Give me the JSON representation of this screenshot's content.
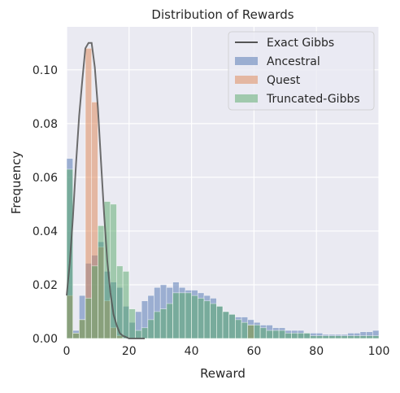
{
  "chart_data": {
    "type": "bar",
    "title": "Distribution of Rewards",
    "xlabel": "Reward",
    "ylabel": "Frequency",
    "xlim": [
      0,
      100
    ],
    "ylim": [
      0,
      0.116
    ],
    "xticks": [
      "0",
      "20",
      "40",
      "60",
      "80",
      "100"
    ],
    "yticks": [
      "0.00",
      "0.02",
      "0.04",
      "0.06",
      "0.08",
      "0.10"
    ],
    "grid": true,
    "legend_position": "top-right",
    "bin_width": 2,
    "bin_starts": [
      0,
      2,
      4,
      6,
      8,
      10,
      12,
      14,
      16,
      18,
      20,
      22,
      24,
      26,
      28,
      30,
      32,
      34,
      36,
      38,
      40,
      42,
      44,
      46,
      48,
      50,
      52,
      54,
      56,
      58,
      60,
      62,
      64,
      66,
      68,
      70,
      72,
      74,
      76,
      78,
      80,
      82,
      84,
      86,
      88,
      90,
      92,
      94,
      96,
      98
    ],
    "series": [
      {
        "name": "Ancestral",
        "color": "#4c72b0",
        "values": [
          0.067,
          0.003,
          0.016,
          0.028,
          0.031,
          0.036,
          0.025,
          0.021,
          0.019,
          0.012,
          0.006,
          0.01,
          0.014,
          0.016,
          0.019,
          0.02,
          0.019,
          0.021,
          0.019,
          0.018,
          0.018,
          0.017,
          0.016,
          0.015,
          0.012,
          0.01,
          0.009,
          0.008,
          0.008,
          0.007,
          0.006,
          0.005,
          0.005,
          0.004,
          0.004,
          0.003,
          0.003,
          0.003,
          0.002,
          0.002,
          0.002,
          0.0015,
          0.0015,
          0.0015,
          0.0015,
          0.002,
          0.002,
          0.0025,
          0.0025,
          0.003
        ]
      },
      {
        "name": "Quest",
        "color": "#dd8452",
        "values": [
          0.016,
          0.002,
          0.007,
          0.108,
          0.088,
          0.034,
          0.014,
          0.004,
          0.001,
          0.0,
          0.0,
          0.0,
          0.0,
          0.0,
          0.0,
          0.0,
          0.0,
          0.0,
          0.0,
          0.0,
          0.0,
          0.0,
          0.0,
          0.0,
          0.0,
          0.0,
          0.0,
          0.0,
          0.0,
          0.005,
          0.0,
          0.0,
          0.0,
          0.0,
          0.0,
          0.0,
          0.0,
          0.0,
          0.0,
          0.0,
          0.0,
          0.0,
          0.0,
          0.0,
          0.0,
          0.0,
          0.0,
          0.0,
          0.0,
          0.0
        ]
      },
      {
        "name": "Truncated-Gibbs",
        "color": "#55a868",
        "values": [
          0.063,
          0.002,
          0.007,
          0.015,
          0.027,
          0.042,
          0.051,
          0.05,
          0.027,
          0.025,
          0.011,
          0.003,
          0.004,
          0.007,
          0.01,
          0.011,
          0.013,
          0.017,
          0.017,
          0.017,
          0.016,
          0.015,
          0.014,
          0.013,
          0.012,
          0.01,
          0.009,
          0.007,
          0.006,
          0.005,
          0.005,
          0.004,
          0.003,
          0.003,
          0.003,
          0.002,
          0.002,
          0.002,
          0.002,
          0.001,
          0.001,
          0.001,
          0.001,
          0.001,
          0.001,
          0.001,
          0.001,
          0.001,
          0.001,
          0.001
        ]
      },
      {
        "name": "Exact Gibbs",
        "color": "#555555",
        "type": "line",
        "x": [
          0,
          1,
          2,
          3,
          4,
          5,
          6,
          7,
          8,
          9,
          10,
          11,
          12,
          13,
          14,
          15,
          16,
          17,
          18,
          19,
          20,
          21,
          22,
          25
        ],
        "values": [
          0.016,
          0.028,
          0.045,
          0.065,
          0.083,
          0.096,
          0.108,
          0.11,
          0.11,
          0.101,
          0.086,
          0.066,
          0.046,
          0.029,
          0.017,
          0.009,
          0.005,
          0.002,
          0.001,
          0.0005,
          0.0,
          0.0,
          0.0,
          0.0
        ]
      }
    ]
  }
}
